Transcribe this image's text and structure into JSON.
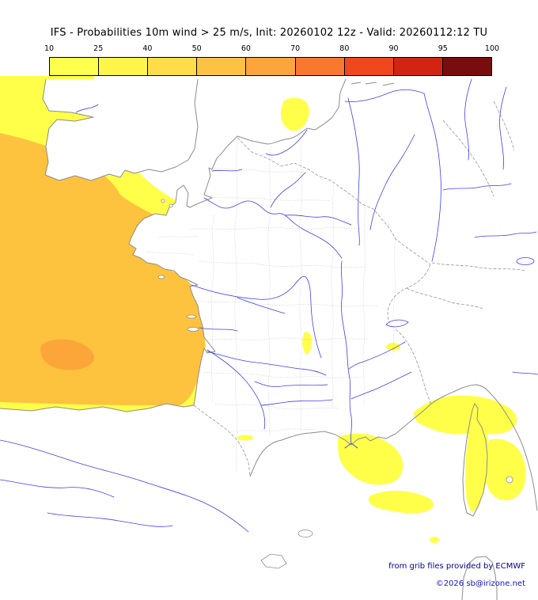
{
  "title": "IFS - Probabilities 10m wind > 25 m/s, Init: 20260102 12z - Valid: 20260112:12 TU",
  "legend": {
    "ticks": [
      "10",
      "25",
      "40",
      "50",
      "60",
      "70",
      "80",
      "90",
      "95",
      "100"
    ],
    "colors": [
      "#ffff4e",
      "#fef54b",
      "#fede48",
      "#fcc243",
      "#fba53c",
      "#f87830",
      "#ef481e",
      "#d22413",
      "#780d0d"
    ]
  },
  "footer": {
    "credit": "from grib files provided by ECMWF",
    "copyright": "©2026 sb@irizone.net",
    "credit_color": "#00008b",
    "copyright_color": "#1414cc"
  },
  "map": {
    "colors": {
      "prob_10": "#ffff4a",
      "prob_50": "#fec33e",
      "prob_60": "#fca63a",
      "coast": "#8c8c8c",
      "border": "#979797",
      "department": "#c2c2c2",
      "river": "#4040e8"
    }
  }
}
